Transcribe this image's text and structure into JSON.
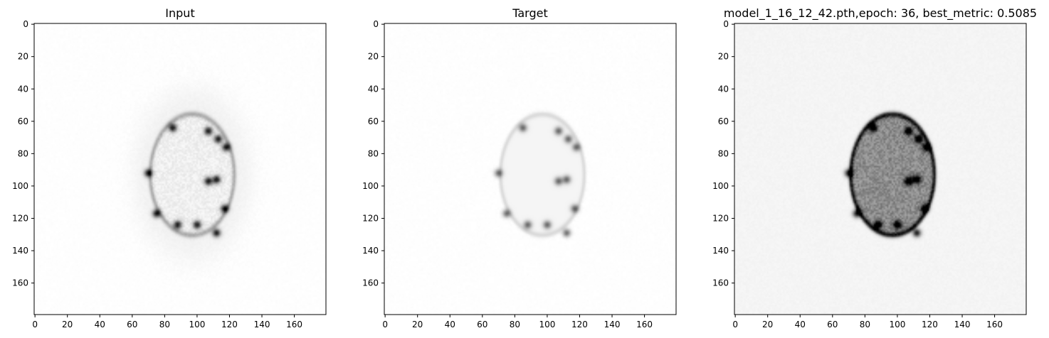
{
  "chart_data": [
    {
      "type": "heatmap",
      "title": "Input",
      "colormap": "gray_r",
      "image_size": [
        180,
        180
      ],
      "x_ticks": [
        0,
        20,
        40,
        60,
        80,
        100,
        120,
        140,
        160
      ],
      "y_ticks": [
        0,
        20,
        40,
        60,
        80,
        100,
        120,
        140,
        160
      ],
      "xlim": [
        0,
        180
      ],
      "ylim": [
        180,
        0
      ],
      "object": {
        "center": [
          97,
          93
        ],
        "radii": [
          27,
          39
        ],
        "interior_intensity": 0.06,
        "rim_intensity": 0.28,
        "spots": [
          [
            85,
            64
          ],
          [
            107,
            66
          ],
          [
            113,
            71
          ],
          [
            118,
            76
          ],
          [
            70,
            92
          ],
          [
            107,
            97
          ],
          [
            112,
            96
          ],
          [
            75,
            117
          ],
          [
            88,
            124
          ],
          [
            100,
            124
          ],
          [
            117,
            114
          ],
          [
            112,
            129
          ]
        ],
        "spot_intensity": 0.85,
        "halo_intensity": 0.05,
        "noise": 0.04
      }
    },
    {
      "type": "heatmap",
      "title": "Target",
      "colormap": "gray_r",
      "image_size": [
        180,
        180
      ],
      "x_ticks": [
        0,
        20,
        40,
        60,
        80,
        100,
        120,
        140,
        160
      ],
      "y_ticks": [
        0,
        20,
        40,
        60,
        80,
        100,
        120,
        140,
        160
      ],
      "xlim": [
        0,
        180
      ],
      "ylim": [
        180,
        0
      ],
      "object": {
        "center": [
          97,
          93
        ],
        "radii": [
          27,
          39
        ],
        "interior_intensity": 0.04,
        "rim_intensity": 0.12,
        "spots": [
          [
            85,
            64
          ],
          [
            107,
            66
          ],
          [
            113,
            71
          ],
          [
            118,
            76
          ],
          [
            70,
            92
          ],
          [
            107,
            97
          ],
          [
            112,
            96
          ],
          [
            75,
            117
          ],
          [
            88,
            124
          ],
          [
            100,
            124
          ],
          [
            117,
            114
          ],
          [
            112,
            129
          ]
        ],
        "spot_intensity": 0.55,
        "halo_intensity": 0.0,
        "noise": 0.0
      }
    },
    {
      "type": "heatmap",
      "title": "model_1_16_12_42.pth,epoch: 36, best_metric: 0.5085",
      "colormap": "gray_r",
      "image_size": [
        180,
        180
      ],
      "x_ticks": [
        0,
        20,
        40,
        60,
        80,
        100,
        120,
        140,
        160
      ],
      "y_ticks": [
        0,
        20,
        40,
        60,
        80,
        100,
        120,
        140,
        160
      ],
      "xlim": [
        0,
        180
      ],
      "ylim": [
        180,
        0
      ],
      "object": {
        "center": [
          97,
          93
        ],
        "radii": [
          27,
          39
        ],
        "interior_intensity": 0.45,
        "rim_intensity": 0.65,
        "spots": [
          [
            85,
            64
          ],
          [
            107,
            66
          ],
          [
            113,
            71
          ],
          [
            118,
            76
          ],
          [
            70,
            92
          ],
          [
            107,
            97
          ],
          [
            112,
            96
          ],
          [
            75,
            117
          ],
          [
            88,
            124
          ],
          [
            100,
            124
          ],
          [
            117,
            114
          ],
          [
            112,
            129
          ]
        ],
        "spot_intensity": 0.85,
        "halo_intensity": 0.0,
        "noise": 0.1,
        "background_intensity": 0.04
      }
    }
  ]
}
